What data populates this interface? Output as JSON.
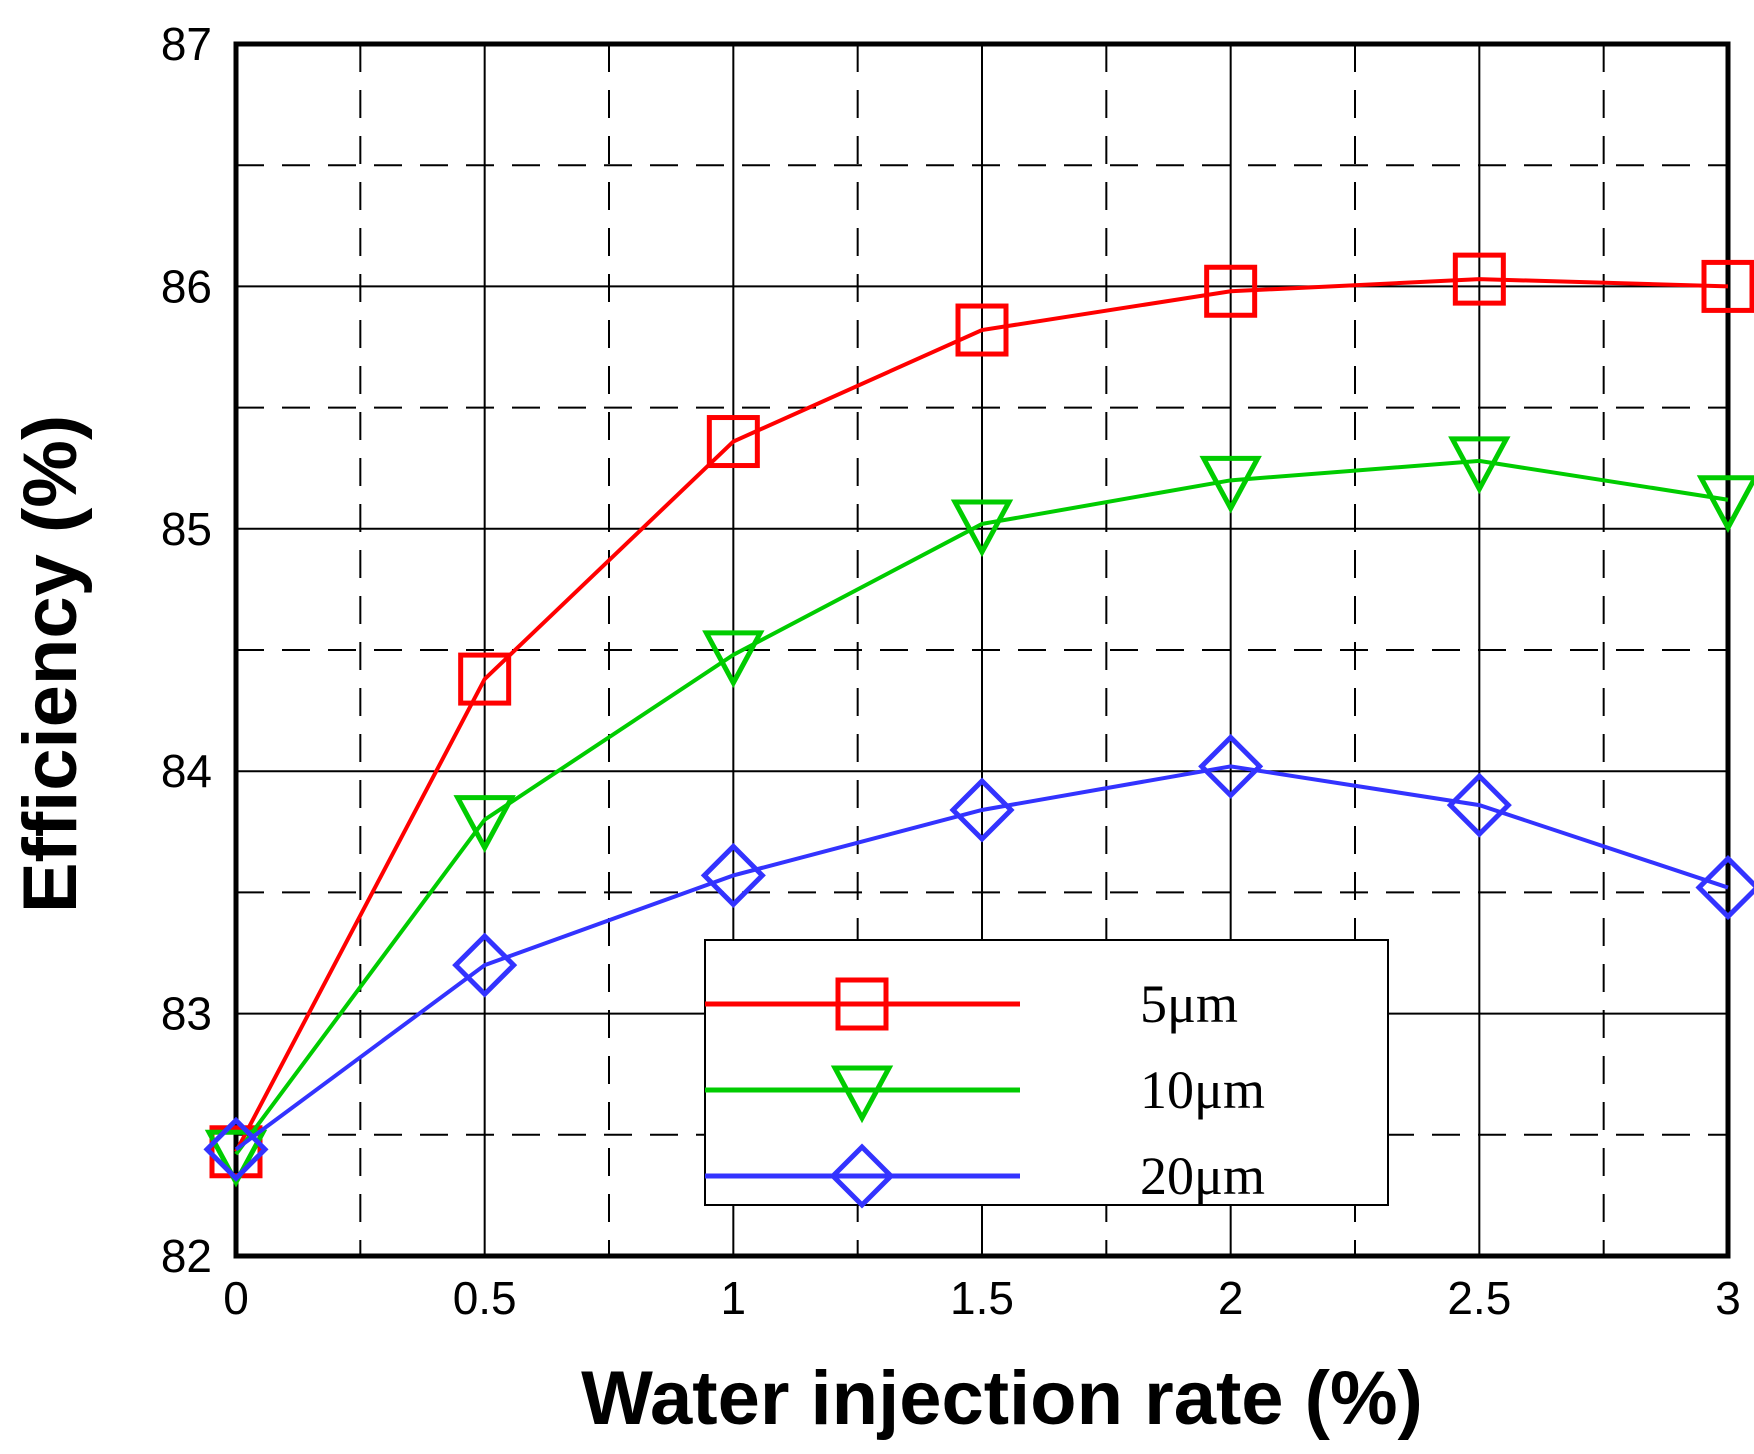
{
  "chart_data": {
    "type": "line",
    "title": "",
    "xlabel": "Water injection rate (%)",
    "ylabel": "Efficiency (%)",
    "xlim": [
      0,
      3
    ],
    "ylim": [
      82,
      87
    ],
    "x_ticks": [
      0,
      0.5,
      1,
      1.5,
      2,
      2.5,
      3
    ],
    "x_tick_labels": [
      "0",
      "0.5",
      "1",
      "1.5",
      "2",
      "2.5",
      "3"
    ],
    "y_ticks": [
      82,
      83,
      84,
      85,
      86,
      87
    ],
    "y_tick_labels": [
      "82",
      "83",
      "84",
      "85",
      "86",
      "87"
    ],
    "grid": true,
    "legend_position": "bottom-center",
    "x": [
      0,
      0.5,
      1,
      1.5,
      2,
      2.5,
      3
    ],
    "series": [
      {
        "name": "5μm",
        "color": "#ff0000",
        "marker": "square",
        "values": [
          82.43,
          84.38,
          85.36,
          85.82,
          85.98,
          86.03,
          86.0
        ]
      },
      {
        "name": "10μm",
        "color": "#00cc00",
        "marker": "triangle-down",
        "values": [
          82.42,
          83.8,
          84.48,
          85.02,
          85.2,
          85.28,
          85.12
        ]
      },
      {
        "name": "20μm",
        "color": "#3333ff",
        "marker": "diamond",
        "values": [
          82.44,
          83.2,
          83.57,
          83.84,
          84.02,
          83.86,
          83.52
        ]
      }
    ]
  }
}
